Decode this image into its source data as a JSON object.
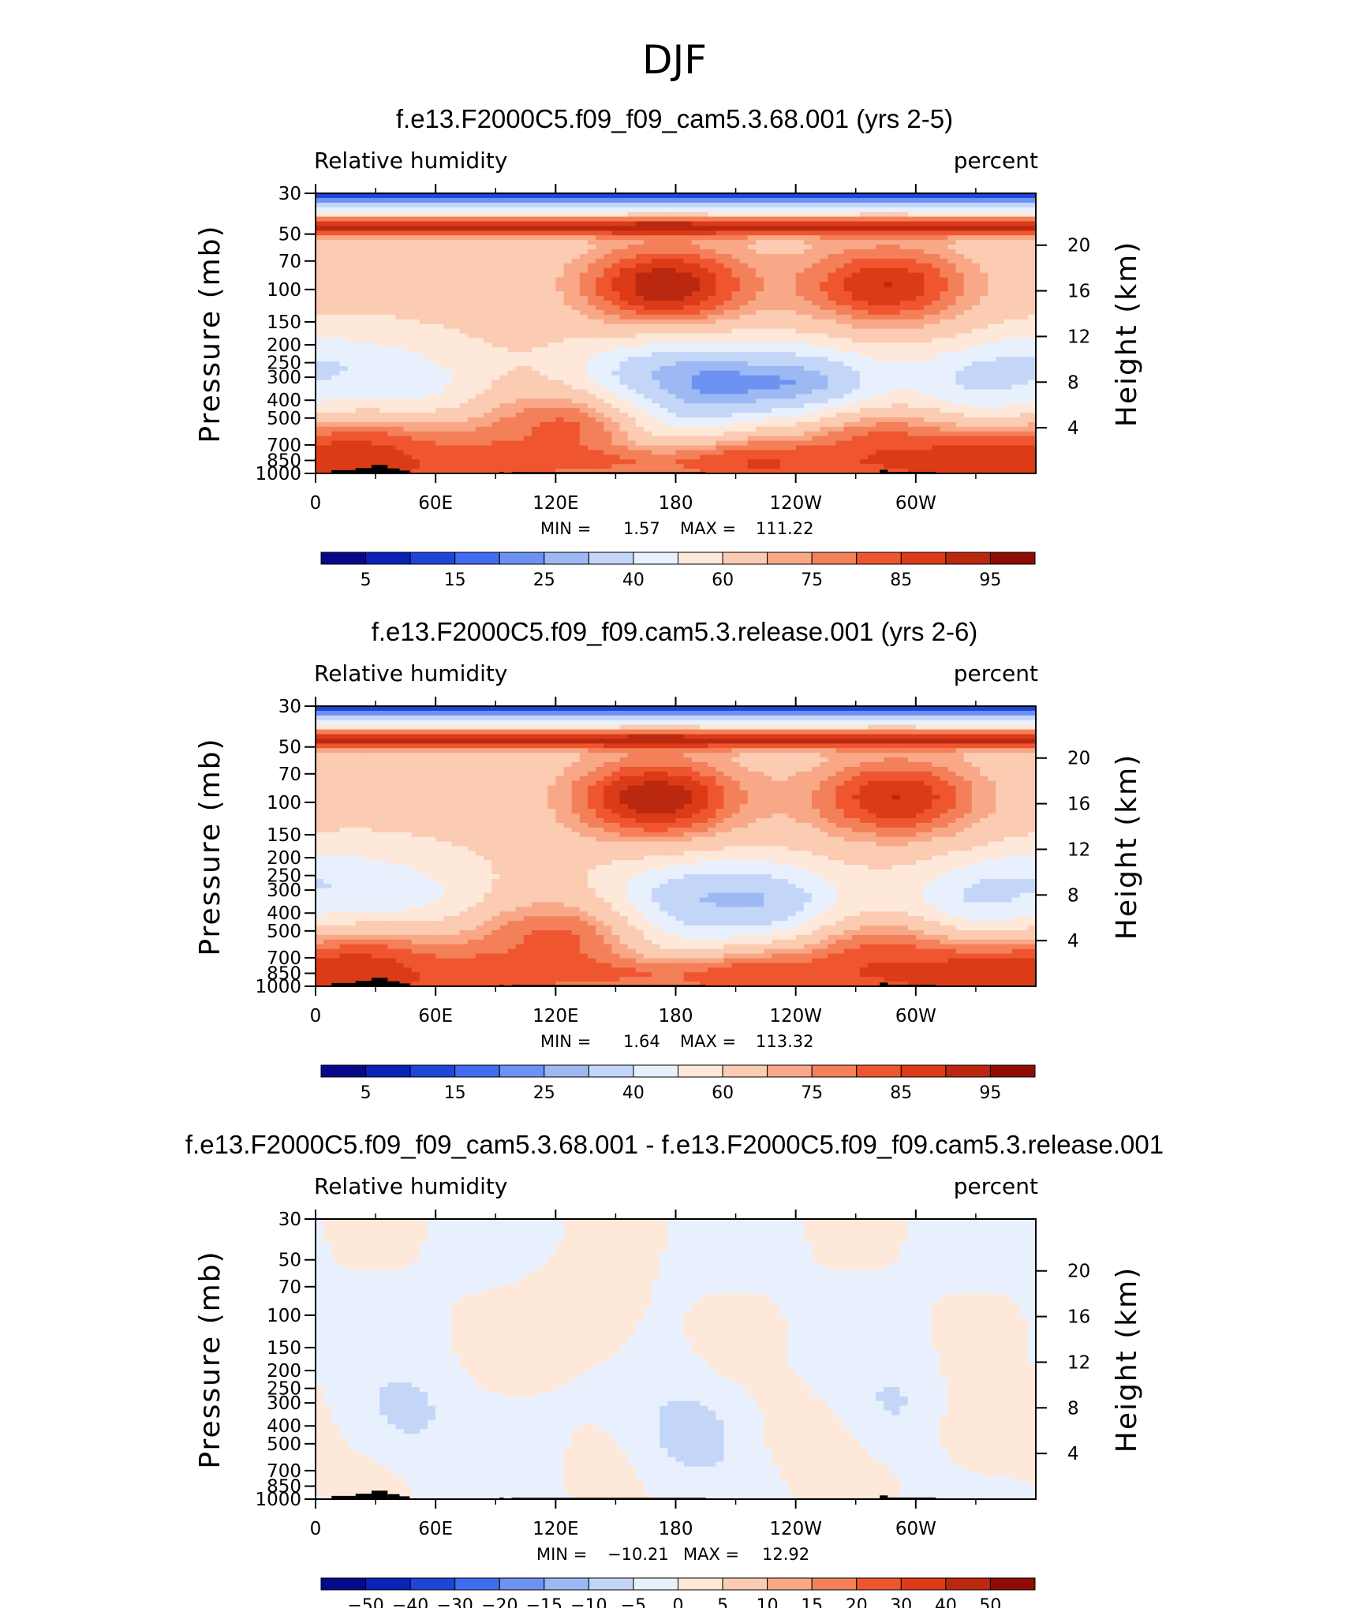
{
  "title": "DJF",
  "colors": {
    "rh_scale": [
      "#08088a",
      "#0a22b8",
      "#1f45d8",
      "#3f6cf0",
      "#6d93f2",
      "#9db9f4",
      "#c4d6f8",
      "#e8f0fd",
      "#fde8da",
      "#fbcbb2",
      "#f8a887",
      "#f4805a",
      "#ef5630",
      "#dc3b17",
      "#bb2810",
      "#8f0c06"
    ],
    "diff_scale": [
      "#08088a",
      "#0a22b8",
      "#1f45d8",
      "#3f6cf0",
      "#6d93f2",
      "#9db9f4",
      "#c4d6f8",
      "#e8f0fd",
      "#fde8da",
      "#fbcbb2",
      "#f8a887",
      "#f4805a",
      "#ef5630",
      "#dc3b17",
      "#bb2810",
      "#8f0c06"
    ],
    "topography": "#000000"
  },
  "chart_data": [
    {
      "type": "heatmap",
      "title": "f.e13.F2000C5.f09_f09_cam5.3.68.001 (yrs 2-5)",
      "variable": "Relative humidity",
      "units": "percent",
      "ylabel": "Pressure (mb)",
      "y2label": "Height (km)",
      "x_ticks": [
        "0",
        "60E",
        "120E",
        "180",
        "120W",
        "60W"
      ],
      "y_ticks": [
        "30",
        "50",
        "70",
        "100",
        "150",
        "200",
        "250",
        "300",
        "400",
        "500",
        "700",
        "850",
        "1000"
      ],
      "y2_ticks": [
        "20",
        "16",
        "12",
        "8",
        "4"
      ],
      "xlim": [
        0,
        360
      ],
      "ylim": [
        1000,
        30
      ],
      "min": "1.57",
      "max": "111.22",
      "stats": {
        "min_label": "MIN =",
        "min": "1.57",
        "max_label": "MAX =",
        "max": "111.22"
      },
      "colorbar_labels": [
        "5",
        "15",
        "25",
        "40",
        "60",
        "75",
        "85",
        "95"
      ],
      "blobs": [
        {
          "lon": 190,
          "p": 370,
          "v": 12
        },
        {
          "lon": 175,
          "p": 330,
          "v": 22
        },
        {
          "lon": 245,
          "p": 360,
          "v": 14
        },
        {
          "lon": 345,
          "p": 350,
          "v": 20
        },
        {
          "lon": 40,
          "p": 380,
          "v": 35
        },
        {
          "lon": 5,
          "p": 350,
          "v": 38
        },
        {
          "lon": 125,
          "p": 560,
          "v": 85
        },
        {
          "lon": 175,
          "p": 95,
          "v": 100
        },
        {
          "lon": 285,
          "p": 95,
          "v": 95
        },
        {
          "lon": 30,
          "p": 760,
          "v": 82
        },
        {
          "lon": 280,
          "p": 700,
          "v": 85
        },
        {
          "lon": 90,
          "p": 900,
          "v": 82
        },
        {
          "lon": 220,
          "p": 930,
          "v": 87
        },
        {
          "lon": 330,
          "p": 930,
          "v": 90
        },
        {
          "lon": 15,
          "p": 950,
          "v": 90
        }
      ]
    },
    {
      "type": "heatmap",
      "title": "f.e13.F2000C5.f09_f09.cam5.3.release.001 (yrs 2-6)",
      "variable": "Relative humidity",
      "units": "percent",
      "ylabel": "Pressure (mb)",
      "y2label": "Height (km)",
      "x_ticks": [
        "0",
        "60E",
        "120E",
        "180",
        "120W",
        "60W"
      ],
      "y_ticks": [
        "30",
        "50",
        "70",
        "100",
        "150",
        "200",
        "250",
        "300",
        "400",
        "500",
        "700",
        "850",
        "1000"
      ],
      "y2_ticks": [
        "20",
        "16",
        "12",
        "8",
        "4"
      ],
      "xlim": [
        0,
        360
      ],
      "ylim": [
        1000,
        30
      ],
      "min": "1.64",
      "max": "113.32",
      "stats": {
        "min_label": "MIN =",
        "min": "1.64",
        "max_label": "MAX =",
        "max": "113.32"
      },
      "colorbar_labels": [
        "5",
        "15",
        "25",
        "40",
        "60",
        "75",
        "85",
        "95"
      ],
      "blobs": [
        {
          "lon": 220,
          "p": 410,
          "v": 15
        },
        {
          "lon": 190,
          "p": 360,
          "v": 25
        },
        {
          "lon": 345,
          "p": 380,
          "v": 18
        },
        {
          "lon": 40,
          "p": 380,
          "v": 38
        },
        {
          "lon": 5,
          "p": 350,
          "v": 38
        },
        {
          "lon": 120,
          "p": 560,
          "v": 85
        },
        {
          "lon": 170,
          "p": 95,
          "v": 100
        },
        {
          "lon": 290,
          "p": 95,
          "v": 95
        },
        {
          "lon": 30,
          "p": 760,
          "v": 82
        },
        {
          "lon": 280,
          "p": 700,
          "v": 85
        },
        {
          "lon": 90,
          "p": 900,
          "v": 82
        },
        {
          "lon": 220,
          "p": 930,
          "v": 87
        },
        {
          "lon": 330,
          "p": 930,
          "v": 90
        },
        {
          "lon": 15,
          "p": 950,
          "v": 90
        }
      ]
    },
    {
      "type": "heatmap",
      "title": "f.e13.F2000C5.f09_f09_cam5.3.68.001 - f.e13.F2000C5.f09_f09.cam5.3.release.001",
      "variable": "Relative humidity",
      "units": "percent",
      "ylabel": "Pressure (mb)",
      "y2label": "Height (km)",
      "x_ticks": [
        "0",
        "60E",
        "120E",
        "180",
        "120W",
        "60W"
      ],
      "y_ticks": [
        "30",
        "50",
        "70",
        "100",
        "150",
        "200",
        "250",
        "300",
        "400",
        "500",
        "700",
        "850",
        "1000"
      ],
      "y2_ticks": [
        "20",
        "16",
        "12",
        "8",
        "4"
      ],
      "xlim": [
        0,
        360
      ],
      "ylim": [
        1000,
        30
      ],
      "min": "-10.21",
      "max": "12.92",
      "stats": {
        "min_label": "MIN =",
        "min": "−10.21",
        "max_label": "MAX =",
        "max": "12.92"
      },
      "colorbar_labels": [
        "−50",
        "−40",
        "−30",
        "−20",
        "−15",
        "−10",
        "−5",
        "0",
        "5",
        "10",
        "15",
        "20",
        "30",
        "40",
        "50"
      ],
      "blobs": [
        {
          "lon": 185,
          "p": 420,
          "v": -7
        },
        {
          "lon": 45,
          "p": 350,
          "v": -6
        },
        {
          "lon": 290,
          "p": 320,
          "v": -5
        },
        {
          "lon": 335,
          "p": 420,
          "v": 6
        },
        {
          "lon": 135,
          "p": 105,
          "v": 6
        },
        {
          "lon": 240,
          "p": 450,
          "v": 3
        }
      ]
    }
  ]
}
